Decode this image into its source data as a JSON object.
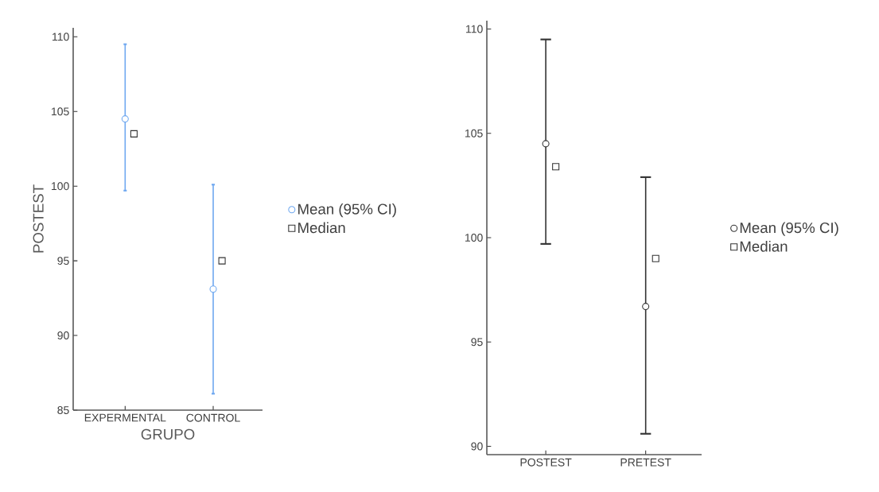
{
  "chart_data": [
    {
      "type": "scatter",
      "xlabel": "GRUPO",
      "ylabel": "POSTEST",
      "categories": [
        "EXPERMENTAL",
        "CONTROL"
      ],
      "ylim": [
        85,
        110.6
      ],
      "yticks": [
        85,
        90,
        95,
        100,
        105,
        110
      ],
      "legend": "right",
      "grid": false,
      "series": [
        {
          "name": "Mean (95% CI)",
          "color": "#6fa8f0",
          "marker": "circle",
          "values": [
            104.5,
            93.1
          ],
          "errors": [
            [
              99.7,
              109.5
            ],
            [
              86.1,
              100.1
            ]
          ]
        },
        {
          "name": "Median",
          "color": "#333333",
          "marker": "square",
          "values": [
            103.5,
            95
          ]
        }
      ]
    },
    {
      "type": "scatter",
      "categories": [
        "POSTEST",
        "PRETEST"
      ],
      "ylim": [
        89.6,
        110.4
      ],
      "yticks": [
        90,
        95,
        100,
        105,
        110
      ],
      "legend": "right",
      "grid": false,
      "series": [
        {
          "name": "Mean (95% CI)",
          "color": "#333333",
          "marker": "circle",
          "values": [
            104.5,
            96.7
          ],
          "errors": [
            [
              99.7,
              109.5
            ],
            [
              90.6,
              102.9
            ]
          ]
        },
        {
          "name": "Median",
          "color": "#333333",
          "marker": "square",
          "values": [
            103.4,
            99
          ]
        }
      ]
    }
  ]
}
